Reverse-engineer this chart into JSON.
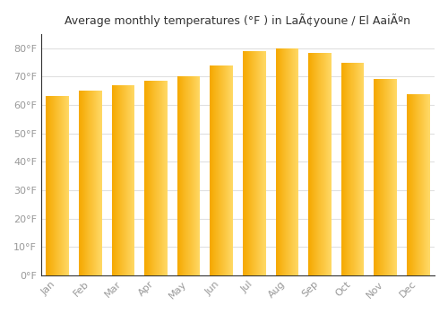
{
  "title": "Average monthly temperatures (°F ) in LaÃ¢youne / El AaiÃºn",
  "months": [
    "Jan",
    "Feb",
    "Mar",
    "Apr",
    "May",
    "Jun",
    "Jul",
    "Aug",
    "Sep",
    "Oct",
    "Nov",
    "Dec"
  ],
  "values": [
    63.1,
    65.1,
    67.1,
    68.5,
    70.3,
    74.1,
    79.0,
    80.1,
    78.3,
    75.0,
    69.3,
    63.7
  ],
  "bar_color_dark": "#F5A800",
  "bar_color_light": "#FFD966",
  "background_color": "#ffffff",
  "grid_color": "#e0e0e0",
  "ylabel_ticks": [
    "0°F",
    "10°F",
    "20°F",
    "30°F",
    "40°F",
    "50°F",
    "60°F",
    "70°F",
    "80°F"
  ],
  "ytick_values": [
    0,
    10,
    20,
    30,
    40,
    50,
    60,
    70,
    80
  ],
  "ylim": [
    0,
    85
  ],
  "title_fontsize": 9,
  "tick_fontsize": 8,
  "tick_color": "#999999",
  "bar_width": 0.7,
  "spine_color": "#333333",
  "gradient_steps": 50
}
